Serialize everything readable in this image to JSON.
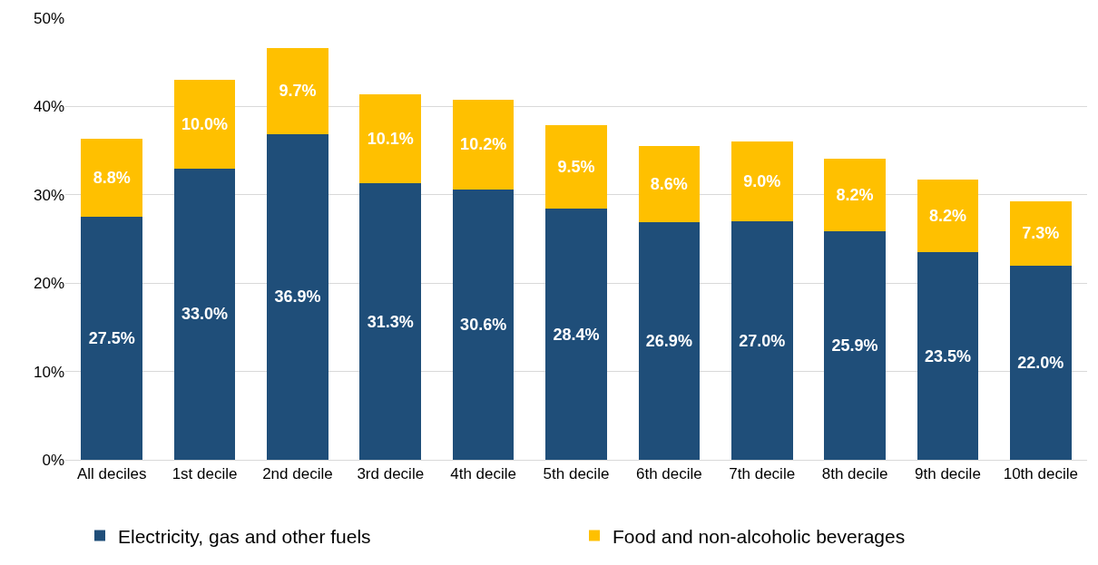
{
  "chart_data": {
    "type": "bar",
    "stacked": true,
    "categories": [
      "All deciles",
      "1st decile",
      "2nd decile",
      "3rd decile",
      "4th decile",
      "5th decile",
      "6th decile",
      "7th decile",
      "8th decile",
      "9th decile",
      "10th decile"
    ],
    "series": [
      {
        "name": "Electricity, gas and other fuels",
        "color": "#1f4e79",
        "values": [
          27.5,
          33.0,
          36.9,
          31.3,
          30.6,
          28.4,
          26.9,
          27.0,
          25.9,
          23.5,
          22.0
        ],
        "value_labels": [
          "27.5%",
          "33.0%",
          "36.9%",
          "31.3%",
          "30.6%",
          "28.4%",
          "26.9%",
          "27.0%",
          "25.9%",
          "23.5%",
          "22.0%"
        ]
      },
      {
        "name": "Food and non-alcoholic beverages",
        "color": "#ffc000",
        "values": [
          8.8,
          10.0,
          9.7,
          10.1,
          10.2,
          9.5,
          8.6,
          9.0,
          8.2,
          8.2,
          7.3
        ],
        "value_labels": [
          "8.8%",
          "10.0%",
          "9.7%",
          "10.1%",
          "10.2%",
          "9.5%",
          "8.6%",
          "9.0%",
          "8.2%",
          "8.2%",
          "7.3%"
        ]
      }
    ],
    "ylim": [
      0,
      50
    ],
    "yticks": [
      {
        "value": 0,
        "label": "0%"
      },
      {
        "value": 10,
        "label": "10%"
      },
      {
        "value": 20,
        "label": "20%"
      },
      {
        "value": 30,
        "label": "30%"
      },
      {
        "value": 40,
        "label": "40%"
      },
      {
        "value": 50,
        "label": "50%"
      }
    ],
    "grid": "y",
    "legend": "bottom"
  }
}
